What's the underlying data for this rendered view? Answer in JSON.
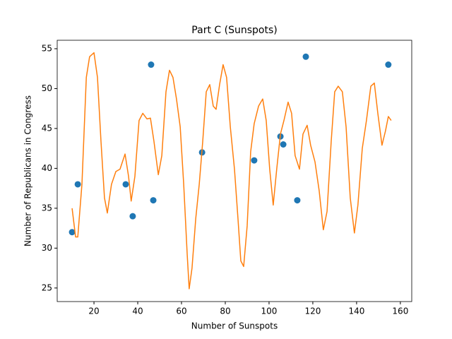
{
  "chart_data": {
    "type": "scatter",
    "title": "Part C (Sunspots)",
    "x_label": "Number of Sunspots",
    "y_label": "Number of Republicans in Congress",
    "xlim": [
      3.2,
      165.2
    ],
    "ylim": [
      23.3,
      56.06
    ],
    "xticks": [
      20,
      40,
      60,
      80,
      100,
      120,
      140,
      160
    ],
    "yticks": [
      25,
      30,
      35,
      40,
      45,
      50,
      55
    ],
    "series": [
      {
        "type": "scatter",
        "color": "#1f77b4",
        "x": [
          10,
          12.6,
          34.5,
          37.7,
          46.1,
          47.1,
          69.4,
          93.2,
          105.2,
          106.5,
          112.9,
          116.8,
          154.5
        ],
        "values": [
          32,
          38,
          38,
          34,
          53,
          36,
          42,
          41,
          44,
          43,
          36,
          54,
          53
        ]
      },
      {
        "type": "line",
        "color": "#ff7f0e",
        "x": [
          10,
          11.6,
          12.6,
          14.5,
          16.5,
          18,
          20,
          21.6,
          23.2,
          24.8,
          26.1,
          28,
          30,
          31.9,
          34.2,
          35.8,
          37,
          38.7,
          40.6,
          42.3,
          44.2,
          45.8,
          47.4,
          49.4,
          51,
          52.9,
          54.5,
          56.1,
          57.7,
          59.4,
          61,
          62.6,
          63.5,
          64.8,
          66.5,
          68.1,
          69.7,
          71.3,
          72.9,
          74.5,
          75.8,
          77.4,
          79,
          80.6,
          82.3,
          84.2,
          85.8,
          87.1,
          88.4,
          90,
          91.6,
          93.2,
          95.2,
          97.1,
          98.7,
          100.3,
          101.9,
          103.5,
          105.2,
          106.8,
          108.7,
          110.3,
          111.9,
          113.9,
          115.5,
          117.4,
          119,
          121,
          122.9,
          124.8,
          126.5,
          128.4,
          130,
          131.6,
          133.5,
          135.2,
          137.1,
          139,
          140.6,
          142.6,
          144.5,
          146.5,
          148.1,
          149.7,
          151.6,
          153.2,
          154.5,
          155.8
        ],
        "values": [
          35,
          31.4,
          31.4,
          38,
          51.4,
          54,
          54.5,
          51.4,
          43.4,
          36.3,
          34.4,
          38,
          39.6,
          39.9,
          41.8,
          39,
          35.9,
          39,
          46,
          46.9,
          46.2,
          46.3,
          43.4,
          39.2,
          41.6,
          49.6,
          52.3,
          51.4,
          48.7,
          45.2,
          38,
          29.2,
          24.9,
          27.5,
          33.7,
          38,
          43.4,
          49.6,
          50.5,
          47.8,
          47.4,
          50.5,
          53,
          51.4,
          45.2,
          39.9,
          33.7,
          28.4,
          27.7,
          32.8,
          42.1,
          45.6,
          47.8,
          48.7,
          46,
          39.9,
          35.4,
          39.9,
          44.3,
          46,
          48.3,
          46.9,
          41.6,
          39.9,
          44.3,
          45.4,
          42.9,
          40.8,
          37.2,
          32.3,
          34.6,
          43.4,
          49.6,
          50.3,
          49.6,
          45.2,
          36.3,
          31.9,
          35.4,
          42.5,
          46,
          50.3,
          50.7,
          46.9,
          42.9,
          44.7,
          46.5,
          46
        ]
      }
    ]
  }
}
